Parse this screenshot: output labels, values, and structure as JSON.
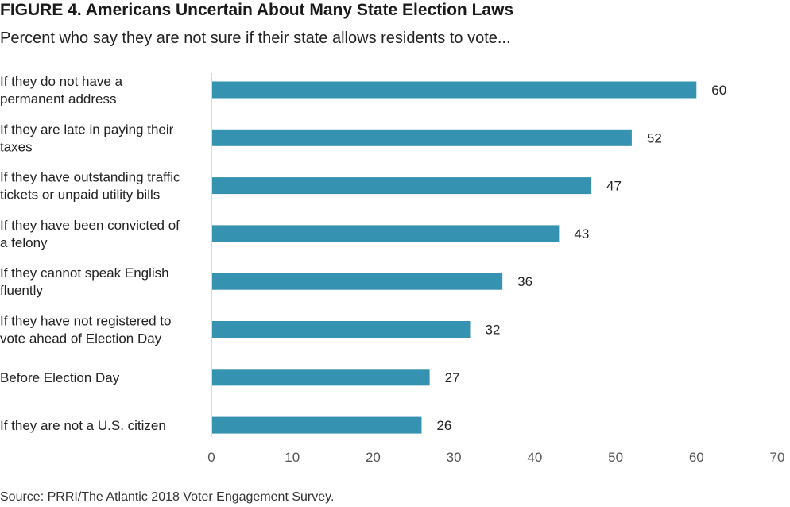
{
  "title": "FIGURE 4. Americans Uncertain About Many State Election Laws",
  "subtitle": "Percent who say they are not sure if their state allows residents to vote...",
  "source": "Source: PRRI/The Atlantic 2018 Voter Engagement Survey.",
  "colors": {
    "bar": "#3592b0",
    "axis": "#d9d9d9",
    "text": "#222222",
    "tick": "#555555"
  },
  "chart_data": {
    "type": "bar",
    "orientation": "horizontal",
    "title": "FIGURE 4. Americans Uncertain About Many State Election Laws",
    "subtitle": "Percent who say they are not sure if their state allows residents to vote...",
    "categories": [
      [
        "If they do not have a",
        "permanent address"
      ],
      [
        "If they are late in paying their",
        "taxes"
      ],
      [
        "If they have outstanding traffic",
        "tickets or unpaid utility bills"
      ],
      [
        "If they have been convicted of",
        "a felony"
      ],
      [
        "If they cannot speak English",
        "fluently"
      ],
      [
        "If they have not registered to",
        "vote ahead of Election Day"
      ],
      [
        "Before Election Day"
      ],
      [
        "If they are not a U.S. citizen"
      ]
    ],
    "values": [
      60,
      52,
      47,
      43,
      36,
      32,
      27,
      26
    ],
    "xlim": [
      0,
      70
    ],
    "xticks": [
      0,
      10,
      20,
      30,
      40,
      50,
      60,
      70
    ],
    "xlabel": "",
    "ylabel": "",
    "grid": false,
    "data_labels": true
  }
}
